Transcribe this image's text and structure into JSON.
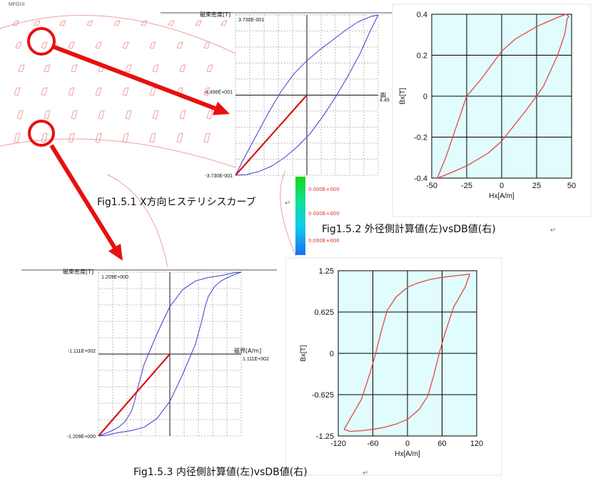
{
  "app": {
    "label": "MFGUI"
  },
  "captions": {
    "fig1": "Fig1.5.1 X方向ヒステリシスカーブ",
    "fig2": "Fig1.5.2 外径側計算値(左)vsDB値(右)",
    "fig3": "Fig1.5.3 内径側計算値(左)vsDB値(右)",
    "para_mark": "↵"
  },
  "colorbar": {
    "labels": [
      "0.000E+000",
      "0.000E+000",
      "0.000E+000"
    ]
  },
  "colors": {
    "arrow": "#e81010",
    "sim_loop": "#3c3ccf",
    "initial_curve": "#d81414",
    "db_loop": "#e04848",
    "db_bg": "#e1fcfc"
  },
  "chart_data": [
    {
      "id": "outer-sim",
      "type": "line",
      "title": "",
      "ylabel": "磁束密度[T]",
      "xlabel": "磁",
      "y_max_label": "3.730E-001",
      "y_min_label": "-3.730E-001",
      "x_min_label": "-4.496E+001",
      "x_max_label": "4.49",
      "xlim": [
        -44.96,
        44.96
      ],
      "ylim": [
        -0.373,
        0.373
      ],
      "grid": true,
      "series": [
        {
          "values_x": [
            -44.96,
            -38,
            -30,
            -22,
            -14,
            -6,
            2,
            10,
            18,
            26,
            34,
            40,
            44.96
          ],
          "values_y": [
            -0.373,
            -0.37,
            -0.355,
            -0.33,
            -0.29,
            -0.24,
            -0.18,
            -0.1,
            -0.01,
            0.09,
            0.2,
            0.3,
            0.373
          ]
        },
        {
          "values_x": [
            44.96,
            40,
            32,
            24,
            16,
            8,
            0,
            -8,
            -16,
            -24,
            -32,
            -40,
            -44.96
          ],
          "values_y": [
            0.373,
            0.365,
            0.34,
            0.3,
            0.255,
            0.21,
            0.16,
            0.1,
            0.02,
            -0.08,
            -0.19,
            -0.3,
            -0.373
          ]
        },
        {
          "values_x": [
            0,
            -44.96
          ],
          "values_y": [
            0,
            -0.373
          ]
        }
      ]
    },
    {
      "id": "outer-db",
      "type": "line",
      "title": "",
      "xlabel": "Hx[A/m]",
      "ylabel": "Bx[T]",
      "xlim": [
        -50,
        50
      ],
      "ylim": [
        -0.4,
        0.4
      ],
      "x_ticks": [
        "-50",
        "-25",
        "0",
        "25",
        "50"
      ],
      "y_ticks": [
        "-0.4",
        "-0.2",
        "0",
        "0.2",
        "0.4"
      ],
      "grid": true,
      "series": [
        {
          "values_x": [
            -46,
            -40,
            -30,
            -25,
            -15,
            0,
            10,
            25,
            35,
            42,
            46,
            48,
            47
          ],
          "values_y": [
            -0.4,
            -0.3,
            -0.1,
            0.0,
            0.08,
            0.22,
            0.28,
            0.34,
            0.37,
            0.39,
            0.4,
            0.39,
            0.38
          ]
        },
        {
          "values_x": [
            47,
            45,
            40,
            30,
            25,
            15,
            0,
            -10,
            -25,
            -35,
            -42,
            -46
          ],
          "values_y": [
            0.38,
            0.3,
            0.2,
            0.05,
            0.0,
            -0.09,
            -0.22,
            -0.28,
            -0.34,
            -0.37,
            -0.39,
            -0.4
          ]
        }
      ]
    },
    {
      "id": "inner-sim",
      "type": "line",
      "title": "",
      "ylabel": "磁束密度[T]",
      "xlabel": "磁界[A/m]",
      "y_max_label": "1.209E+000",
      "y_min_label": "-1.209E+000",
      "x_min_label": "-1.111E+002",
      "x_max_label": "1.111E+002",
      "xlim": [
        -111.1,
        111.1
      ],
      "ylim": [
        -1.209,
        1.209
      ],
      "grid": true,
      "series": [
        {
          "values_x": [
            -111.1,
            -100,
            -80,
            -60,
            -40,
            -20,
            0,
            20,
            40,
            50,
            55,
            60,
            70,
            80,
            90,
            100,
            111.1
          ],
          "values_y": [
            -1.209,
            -1.2,
            -1.16,
            -1.13,
            -1.08,
            -0.95,
            -0.7,
            -0.3,
            0.15,
            0.5,
            0.7,
            0.85,
            1.0,
            1.08,
            1.13,
            1.17,
            1.209
          ]
        },
        {
          "values_x": [
            111.1,
            100,
            80,
            60,
            40,
            20,
            0,
            -20,
            -40,
            -50,
            -55,
            -60,
            -70,
            -80,
            -90,
            -100,
            -111.1
          ],
          "values_y": [
            1.209,
            1.2,
            1.16,
            1.13,
            1.08,
            0.95,
            0.7,
            0.3,
            -0.15,
            -0.5,
            -0.7,
            -0.85,
            -1.0,
            -1.08,
            -1.13,
            -1.17,
            -1.209
          ]
        },
        {
          "values_x": [
            0,
            -111.1
          ],
          "values_y": [
            0,
            -1.209
          ]
        }
      ]
    },
    {
      "id": "inner-db",
      "type": "line",
      "title": "",
      "xlabel": "Hx[A/m]",
      "ylabel": "Bx[T]",
      "xlim": [
        -120,
        120
      ],
      "ylim": [
        -1.25,
        1.25
      ],
      "x_ticks": [
        "-120",
        "-60",
        "0",
        "60",
        "120"
      ],
      "y_ticks": [
        "-1.25",
        "-0.625",
        "0",
        "0.625",
        "1.25"
      ],
      "grid": true,
      "series": [
        {
          "values_x": [
            -110,
            -100,
            -80,
            -65,
            -55,
            -45,
            -35,
            -20,
            0,
            20,
            40,
            60,
            80,
            100,
            108
          ],
          "values_y": [
            -1.15,
            -1.0,
            -0.7,
            -0.3,
            0.0,
            0.35,
            0.65,
            0.85,
            1.0,
            1.07,
            1.12,
            1.15,
            1.17,
            1.19,
            1.2
          ]
        },
        {
          "values_x": [
            108,
            100,
            80,
            65,
            55,
            45,
            35,
            20,
            0,
            -20,
            -40,
            -60,
            -80,
            -100,
            -110
          ],
          "values_y": [
            1.2,
            1.0,
            0.7,
            0.3,
            0.0,
            -0.35,
            -0.65,
            -0.85,
            -1.0,
            -1.07,
            -1.12,
            -1.15,
            -1.17,
            -1.18,
            -1.15
          ]
        }
      ]
    }
  ]
}
